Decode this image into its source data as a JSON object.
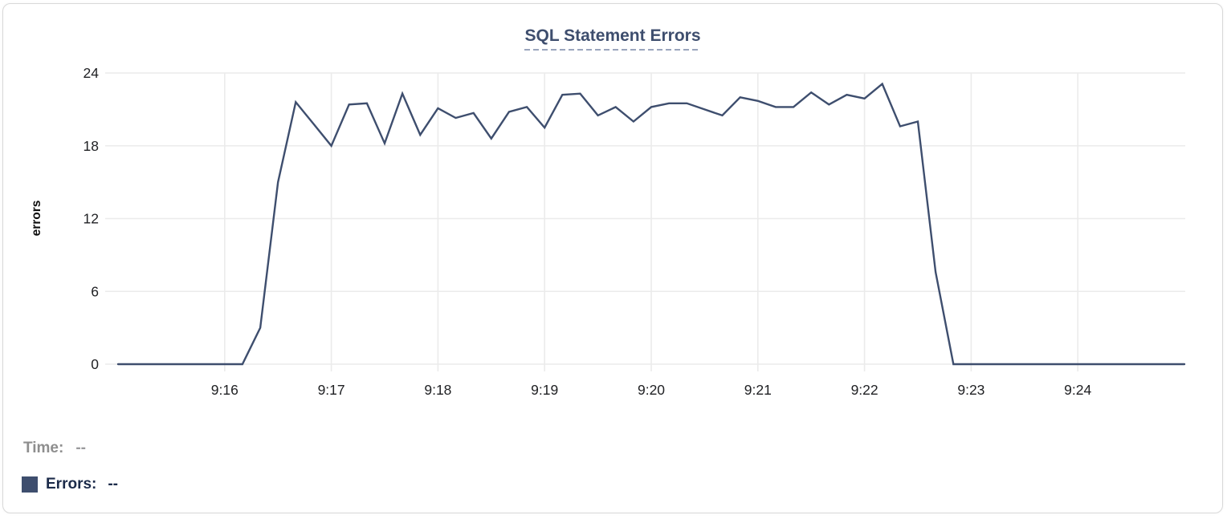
{
  "title": "SQL Statement Errors",
  "legend": {
    "time_label": "Time:",
    "time_value": "--",
    "errors_label": "Errors:",
    "errors_value": "--"
  },
  "colors": {
    "line": "#3e4e6e",
    "swatch": "#3e4e6e",
    "grid": "#ebebeb",
    "title": "#3e4e6e",
    "title_underline": "#9aa5bd"
  },
  "chart_data": {
    "type": "line",
    "title": "SQL Statement Errors",
    "xlabel": "",
    "ylabel": "errors",
    "yticks": [
      0,
      6,
      12,
      18,
      24
    ],
    "ylim": [
      0,
      24
    ],
    "xticks": [
      "9:16",
      "9:17",
      "9:18",
      "9:19",
      "9:20",
      "9:21",
      "9:22",
      "9:23",
      "9:24"
    ],
    "xlim": [
      "9:15",
      "9:25"
    ],
    "grid": true,
    "legend_position": "bottom-left",
    "color": "#3e4e6e",
    "series": [
      {
        "name": "Errors",
        "points": [
          [
            "9:15:00",
            0
          ],
          [
            "9:16:10",
            0
          ],
          [
            "9:16:20",
            3
          ],
          [
            "9:16:30",
            15
          ],
          [
            "9:16:40",
            21.6
          ],
          [
            "9:16:50",
            19.8
          ],
          [
            "9:17:00",
            18
          ],
          [
            "9:17:10",
            21.4
          ],
          [
            "9:17:20",
            21.5
          ],
          [
            "9:17:30",
            18.2
          ],
          [
            "9:17:40",
            22.3
          ],
          [
            "9:17:50",
            18.9
          ],
          [
            "9:18:00",
            21.1
          ],
          [
            "9:18:10",
            20.3
          ],
          [
            "9:18:20",
            20.7
          ],
          [
            "9:18:30",
            18.6
          ],
          [
            "9:18:40",
            20.8
          ],
          [
            "9:18:50",
            21.2
          ],
          [
            "9:19:00",
            19.5
          ],
          [
            "9:19:10",
            22.2
          ],
          [
            "9:19:20",
            22.3
          ],
          [
            "9:19:30",
            20.5
          ],
          [
            "9:19:40",
            21.2
          ],
          [
            "9:19:50",
            20.0
          ],
          [
            "9:20:00",
            21.2
          ],
          [
            "9:20:10",
            21.5
          ],
          [
            "9:20:20",
            21.5
          ],
          [
            "9:20:30",
            21.0
          ],
          [
            "9:20:40",
            20.5
          ],
          [
            "9:20:50",
            22.0
          ],
          [
            "9:21:00",
            21.7
          ],
          [
            "9:21:10",
            21.2
          ],
          [
            "9:21:20",
            21.2
          ],
          [
            "9:21:30",
            22.4
          ],
          [
            "9:21:40",
            21.4
          ],
          [
            "9:21:50",
            22.2
          ],
          [
            "9:22:00",
            21.9
          ],
          [
            "9:22:10",
            23.1
          ],
          [
            "9:22:20",
            19.6
          ],
          [
            "9:22:30",
            20.0
          ],
          [
            "9:22:40",
            7.6
          ],
          [
            "9:22:50",
            0
          ],
          [
            "9:25:00",
            0
          ]
        ]
      }
    ]
  }
}
